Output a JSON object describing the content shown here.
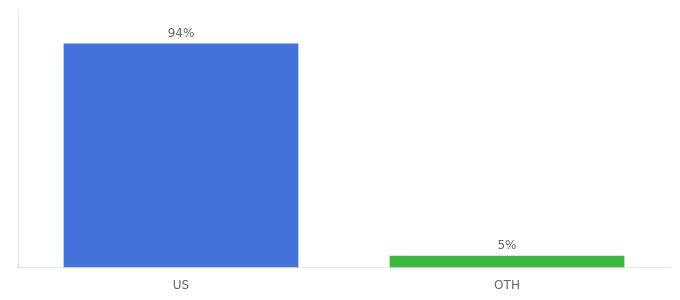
{
  "chart_data": {
    "type": "bar",
    "categories": [
      "US",
      "OTH"
    ],
    "values": [
      94,
      5
    ],
    "value_labels": [
      "94%",
      "5%"
    ],
    "colors": [
      "#4472DB",
      "#3CB63C"
    ],
    "ylim": [
      0,
      108
    ],
    "data_labels": true,
    "tick_labels": "x",
    "grid": false
  }
}
